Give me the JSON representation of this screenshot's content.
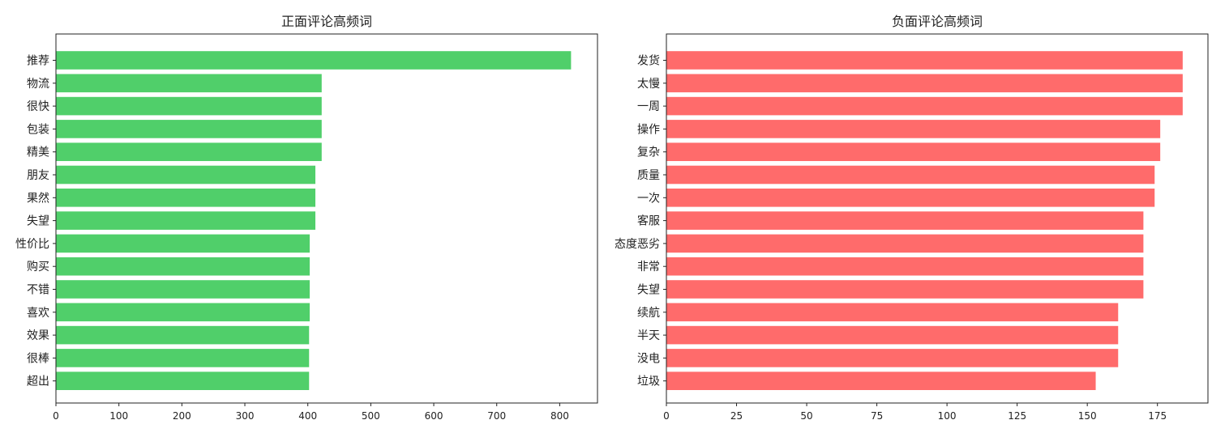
{
  "chart_data": [
    {
      "type": "bar",
      "orientation": "horizontal",
      "title": "正面评论高频词",
      "xlabel": "",
      "ylabel": "",
      "categories": [
        "推荐",
        "物流",
        "很快",
        "包装",
        "精美",
        "朋友",
        "果然",
        "失望",
        "性价比",
        "购买",
        "不错",
        "喜欢",
        "效果",
        "很棒",
        "超出"
      ],
      "values": [
        818,
        422,
        422,
        422,
        422,
        412,
        412,
        412,
        403,
        403,
        403,
        403,
        402,
        402,
        402
      ],
      "xlim": [
        0,
        860
      ],
      "xticks": [
        0,
        100,
        200,
        300,
        400,
        500,
        600,
        700,
        800
      ],
      "color": "#50cf6a",
      "grid": false
    },
    {
      "type": "bar",
      "orientation": "horizontal",
      "title": "负面评论高频词",
      "xlabel": "",
      "ylabel": "",
      "categories": [
        "发货",
        "太慢",
        "一周",
        "操作",
        "复杂",
        "质量",
        "一次",
        "客服",
        "态度恶劣",
        "非常",
        "失望",
        "续航",
        "半天",
        "没电",
        "垃圾"
      ],
      "values": [
        184,
        184,
        184,
        176,
        176,
        174,
        174,
        170,
        170,
        170,
        170,
        161,
        161,
        161,
        153
      ],
      "xlim": [
        0,
        193
      ],
      "xticks": [
        0,
        25,
        50,
        75,
        100,
        125,
        150,
        175
      ],
      "color": "#ff6b6b",
      "grid": false
    }
  ]
}
